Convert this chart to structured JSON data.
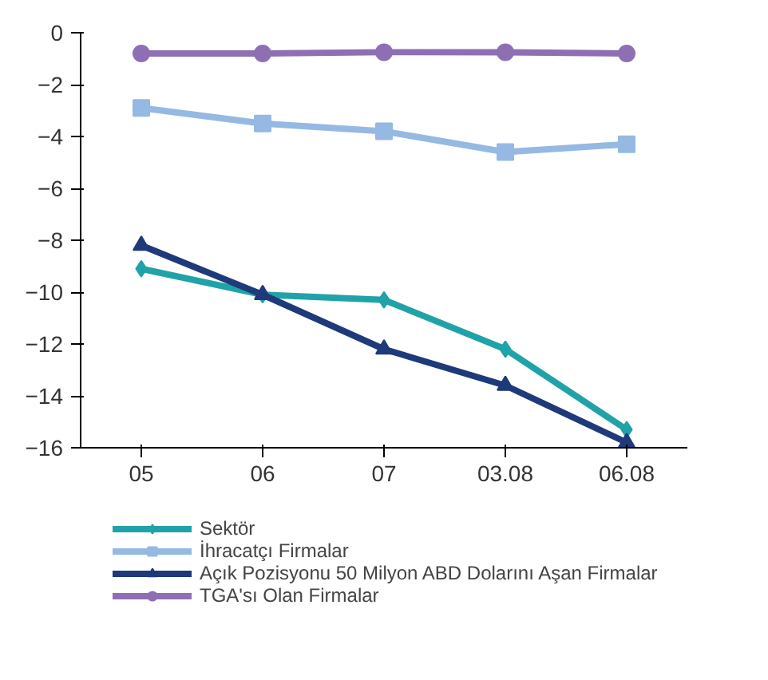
{
  "chart_data": {
    "type": "line",
    "categories": [
      "05",
      "06",
      "07",
      "03.08",
      "06.08"
    ],
    "ylim": [
      -16,
      0
    ],
    "yticks": [
      -16,
      -14,
      -12,
      -10,
      -8,
      -6,
      -4,
      -2,
      0
    ],
    "grid": false,
    "legend": "bottom",
    "line_style": "solid",
    "series": [
      {
        "name": "Sektör",
        "color": "#1fa3a8",
        "marker": "diamond",
        "values": [
          -9.1,
          -10.1,
          -10.3,
          -12.2,
          -15.3
        ]
      },
      {
        "name": "İhracatçı Firmalar",
        "color": "#95b9e2",
        "marker": "square",
        "values": [
          -2.9,
          -3.5,
          -3.8,
          -4.6,
          -4.3
        ]
      },
      {
        "name": "Açık Pozisyonu 50 Milyon ABD Dolarını Aşan Firmalar",
        "color": "#1f3a7a",
        "marker": "triangle",
        "values": [
          -8.2,
          -10.1,
          -12.2,
          -13.6,
          -15.8
        ]
      },
      {
        "name": "TGA'sı Olan Firmalar",
        "color": "#8e6fb4",
        "marker": "circle",
        "values": [
          -0.8,
          -0.8,
          -0.75,
          -0.75,
          -0.8
        ]
      }
    ]
  }
}
